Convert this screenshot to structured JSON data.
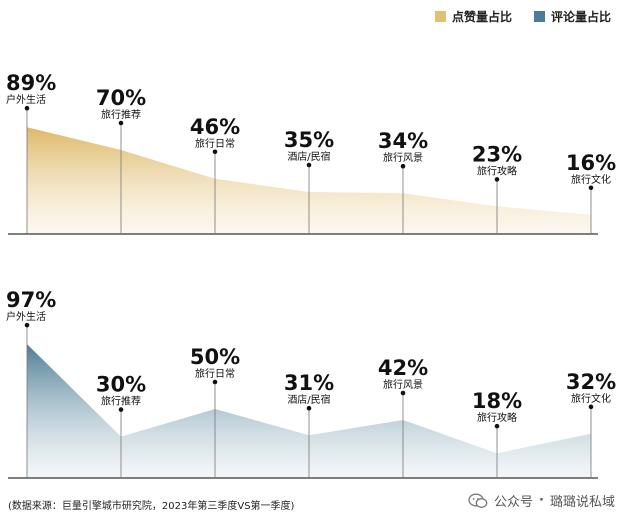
{
  "legend": {
    "items": [
      {
        "label": "点赞量占比",
        "color": "#e2c072"
      },
      {
        "label": "评论量占比",
        "color": "#4b7c97"
      }
    ]
  },
  "chart_data": [
    {
      "type": "area",
      "categories": [
        "户外生活",
        "旅行推荐",
        "旅行日常",
        "酒店/民宿",
        "旅行风景",
        "旅行攻略",
        "旅行文化"
      ],
      "values": [
        89,
        70,
        46,
        35,
        34,
        23,
        16
      ],
      "data_labels": [
        "89%",
        "70%",
        "46%",
        "35%",
        "34%",
        "23%",
        "16%"
      ],
      "ylim": [
        0,
        100
      ],
      "color": "#e2c072",
      "legend_label": "点赞量占比"
    },
    {
      "type": "area",
      "categories": [
        "户外生活",
        "旅行推荐",
        "旅行日常",
        "酒店/民宿",
        "旅行风景",
        "旅行攻略",
        "旅行文化"
      ],
      "values": [
        97,
        30,
        50,
        31,
        42,
        18,
        32
      ],
      "data_labels": [
        "97%",
        "30%",
        "50%",
        "31%",
        "42%",
        "18%",
        "32%"
      ],
      "ylim": [
        0,
        100
      ],
      "color": "#4b7c97",
      "legend_label": "评论量占比"
    }
  ],
  "footer": {
    "source": "(数据来源：巨量引擎城市研究院，2023年第三季度VS第一季度)",
    "watermark_prefix": "公众号",
    "watermark_dot": "·",
    "watermark_name": "璐璐说私域"
  }
}
